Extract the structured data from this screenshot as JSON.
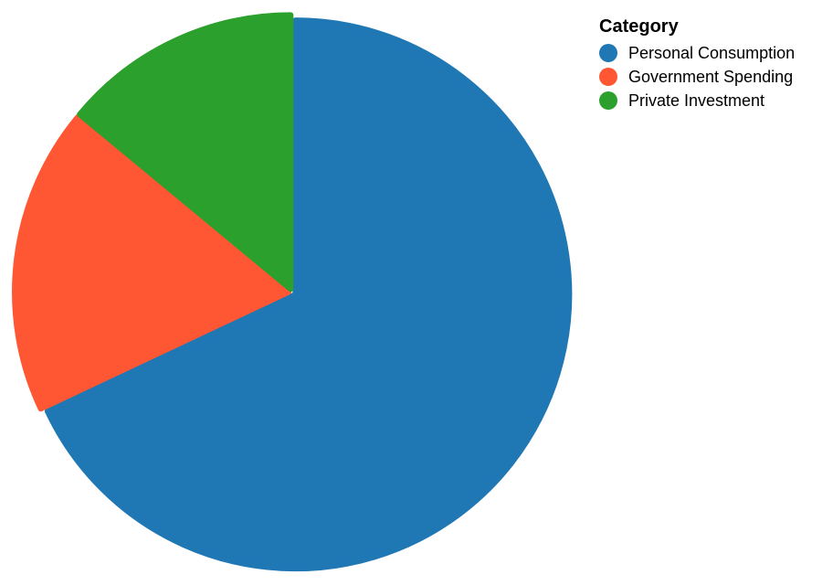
{
  "chart_data": {
    "type": "pie",
    "legend_title": "Category",
    "legend_position": "top-right",
    "slices": [
      {
        "label": "Personal Consumption",
        "value": 68,
        "color": "#1f77b4"
      },
      {
        "label": "Government Spending",
        "value": 18,
        "color": "#ff5733"
      },
      {
        "label": "Private Investment",
        "value": 14,
        "color": "#2ca02c"
      }
    ]
  }
}
